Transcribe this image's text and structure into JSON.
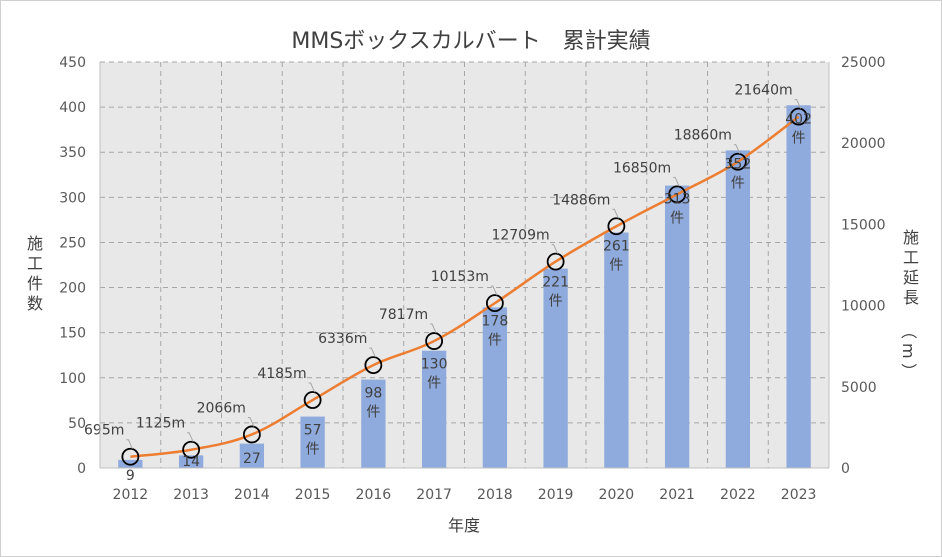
{
  "chart_data": {
    "type": "bar+line",
    "title": "MMSボックスカルバート　累計実績",
    "xlabel": "年度",
    "ylabel": "施工件数",
    "y2label": "施工延長（m）",
    "categories": [
      "2012",
      "2013",
      "2014",
      "2015",
      "2016",
      "2017",
      "2018",
      "2019",
      "2020",
      "2021",
      "2022",
      "2023"
    ],
    "ylim": [
      0,
      450
    ],
    "y2lim": [
      0,
      25000
    ],
    "y_ticks": [
      0,
      50,
      100,
      150,
      200,
      250,
      300,
      350,
      400,
      450
    ],
    "y2_ticks": [
      0,
      5000,
      10000,
      15000,
      20000,
      25000
    ],
    "grid": true,
    "series": [
      {
        "kind": "bar",
        "axis": "left",
        "color": "#8faadc",
        "values": [
          9,
          14,
          27,
          57,
          98,
          130,
          178,
          221,
          261,
          313,
          352,
          402
        ],
        "labels": [
          "9",
          "14",
          "27",
          "57件",
          "98件",
          "130件",
          "178件",
          "221件",
          "261件",
          "313件",
          "352件",
          "402件"
        ]
      },
      {
        "kind": "line",
        "axis": "right",
        "color": "#ed7d31",
        "values": [
          695,
          1125,
          2066,
          4185,
          6336,
          7817,
          10153,
          12709,
          14886,
          16850,
          18860,
          21640
        ],
        "labels": [
          "695m",
          "1125m",
          "2066m",
          "4185m",
          "6336m",
          "7817m",
          "10153m",
          "12709m",
          "14886m",
          "16850m",
          "18860m",
          "21640m"
        ]
      }
    ]
  }
}
